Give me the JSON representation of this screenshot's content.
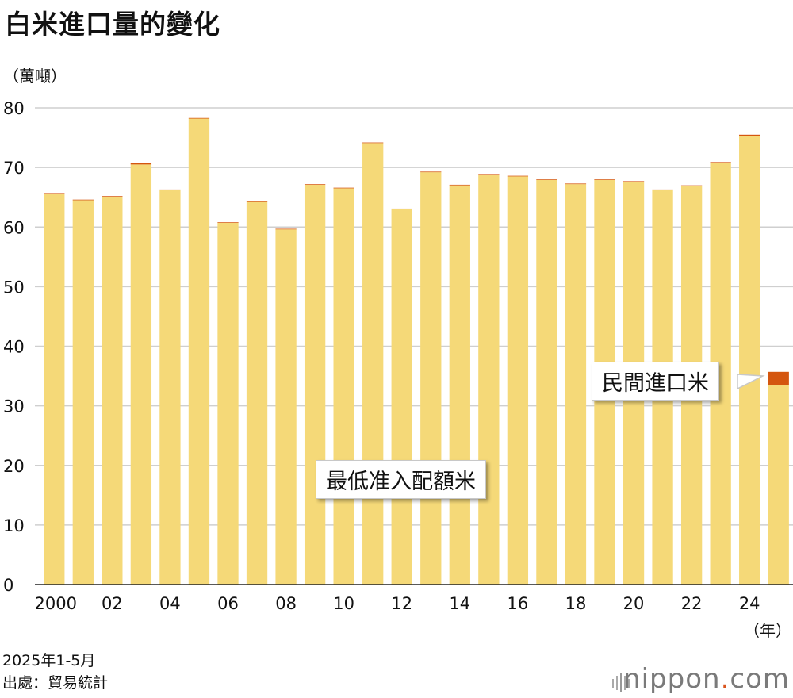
{
  "chart_data": {
    "type": "bar",
    "stacked": true,
    "title": "白米進口量的變化",
    "ylabel": "（萬噸）",
    "xlabel": "（年）",
    "ylim": [
      0,
      80
    ],
    "yticks": [
      0,
      10,
      20,
      30,
      40,
      50,
      60,
      70,
      80
    ],
    "categories": [
      "2000",
      "01",
      "02",
      "03",
      "04",
      "05",
      "06",
      "07",
      "08",
      "09",
      "10",
      "11",
      "12",
      "13",
      "14",
      "15",
      "16",
      "17",
      "18",
      "19",
      "20",
      "21",
      "22",
      "23",
      "24",
      "25"
    ],
    "tick_labels": [
      "2000",
      "02",
      "04",
      "06",
      "08",
      "10",
      "12",
      "14",
      "16",
      "18",
      "20",
      "22",
      "24"
    ],
    "series": [
      {
        "name": "最低准入配額米",
        "color": "#f5d978",
        "values": [
          65.6,
          64.5,
          65.1,
          70.5,
          66.2,
          78.2,
          60.7,
          64.2,
          59.6,
          67.1,
          66.5,
          74.1,
          63.0,
          69.2,
          67.0,
          68.8,
          68.5,
          67.9,
          67.2,
          67.9,
          67.5,
          66.2,
          66.9,
          70.8,
          75.3,
          33.5
        ]
      },
      {
        "name": "民間進口米",
        "color": "#d4560f",
        "values": [
          0.1,
          0.1,
          0.1,
          0.2,
          0.1,
          0.1,
          0.1,
          0.2,
          0.1,
          0.1,
          0.1,
          0.1,
          0.1,
          0.1,
          0.1,
          0.1,
          0.1,
          0.1,
          0.1,
          0.1,
          0.2,
          0.1,
          0.1,
          0.1,
          0.2,
          2.2
        ]
      }
    ],
    "annotations": [
      "民間進口米",
      "最低准入配額米"
    ]
  },
  "notes": {
    "period": "2025年1-5月",
    "source": "出處：貿易統計"
  },
  "logo": {
    "name": "nippon",
    "dot": ".",
    "suffix": "com"
  }
}
